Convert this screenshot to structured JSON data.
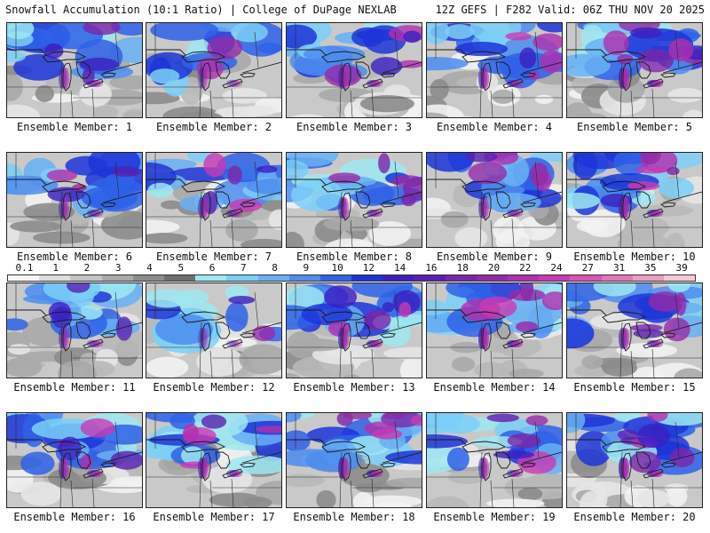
{
  "header": {
    "title_left": "Snowfall Accumulation (10:1 Ratio) | College of DuPage NEXLAB",
    "title_right": "12Z GEFS | F282 Valid: 06Z THU NOV 20 2025"
  },
  "colorbar": {
    "labels": [
      "0.1",
      "1",
      "2",
      "3",
      "4",
      "5",
      "6",
      "7",
      "8",
      "9",
      "10",
      "12",
      "14",
      "16",
      "18",
      "20",
      "22",
      "24",
      "27",
      "31",
      "35",
      "39"
    ],
    "colors": [
      "#f7f7f7",
      "#dedede",
      "#c4c4c4",
      "#a9a9a9",
      "#8c8c8c",
      "#6f6f6f",
      "#9ee8f2",
      "#7bcff7",
      "#68b0f3",
      "#4d8def",
      "#2f62e8",
      "#1d35d8",
      "#3b1fc0",
      "#5a21b0",
      "#7a26a8",
      "#952aa7",
      "#b02fae",
      "#c83ab4",
      "#d853b4",
      "#e276b8",
      "#eb9ec6",
      "#f4c8d9"
    ]
  },
  "members": [
    {
      "label": "Ensemble Member: 1",
      "intensity": 0.45
    },
    {
      "label": "Ensemble Member: 2",
      "intensity": 0.25
    },
    {
      "label": "Ensemble Member: 3",
      "intensity": 0.55
    },
    {
      "label": "Ensemble Member: 4",
      "intensity": 0.6
    },
    {
      "label": "Ensemble Member: 5",
      "intensity": 0.85
    },
    {
      "label": "Ensemble Member: 6",
      "intensity": 0.45
    },
    {
      "label": "Ensemble Member: 7",
      "intensity": 0.5
    },
    {
      "label": "Ensemble Member: 8",
      "intensity": 0.55
    },
    {
      "label": "Ensemble Member: 9",
      "intensity": 0.5
    },
    {
      "label": "Ensemble Member: 10",
      "intensity": 0.7
    },
    {
      "label": "Ensemble Member: 11",
      "intensity": 0.45
    },
    {
      "label": "Ensemble Member: 12",
      "intensity": 0.25
    },
    {
      "label": "Ensemble Member: 13",
      "intensity": 0.7
    },
    {
      "label": "Ensemble Member: 14",
      "intensity": 0.8
    },
    {
      "label": "Ensemble Member: 15",
      "intensity": 0.6
    },
    {
      "label": "Ensemble Member: 16",
      "intensity": 0.55
    },
    {
      "label": "Ensemble Member: 17",
      "intensity": 0.55
    },
    {
      "label": "Ensemble Member: 18",
      "intensity": 0.75
    },
    {
      "label": "Ensemble Member: 19",
      "intensity": 0.5
    },
    {
      "label": "Ensemble Member: 20",
      "intensity": 0.8
    }
  ]
}
